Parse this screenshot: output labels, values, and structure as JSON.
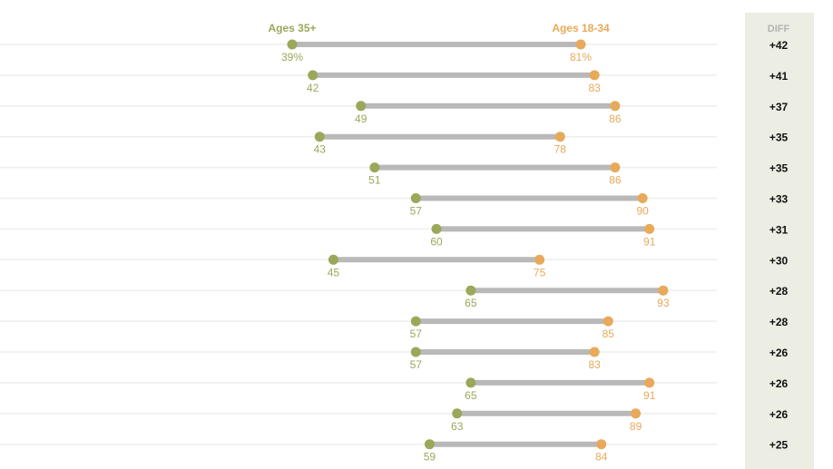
{
  "chart_data": {
    "type": "dumbbell",
    "title": "",
    "xlabel": "",
    "ylabel": "",
    "xlim": [
      0,
      100
    ],
    "series": [
      {
        "name": "Ages 35+",
        "color": "#9aa85a"
      },
      {
        "name": "Ages 18-34",
        "color": "#e8a95a"
      }
    ],
    "diff_header": "DIFF",
    "rows": [
      {
        "older": 39,
        "younger": 81,
        "older_label": "39%",
        "younger_label": "81%",
        "diff": "+42"
      },
      {
        "older": 42,
        "younger": 83,
        "older_label": "42",
        "younger_label": "83",
        "diff": "+41"
      },
      {
        "older": 49,
        "younger": 86,
        "older_label": "49",
        "younger_label": "86",
        "diff": "+37"
      },
      {
        "older": 43,
        "younger": 78,
        "older_label": "43",
        "younger_label": "78",
        "diff": "+35"
      },
      {
        "older": 51,
        "younger": 86,
        "older_label": "51",
        "younger_label": "86",
        "diff": "+35"
      },
      {
        "older": 57,
        "younger": 90,
        "older_label": "57",
        "younger_label": "90",
        "diff": "+33"
      },
      {
        "older": 60,
        "younger": 91,
        "older_label": "60",
        "younger_label": "91",
        "diff": "+31"
      },
      {
        "older": 45,
        "younger": 75,
        "older_label": "45",
        "younger_label": "75",
        "diff": "+30"
      },
      {
        "older": 65,
        "younger": 93,
        "older_label": "65",
        "younger_label": "93",
        "diff": "+28"
      },
      {
        "older": 57,
        "younger": 85,
        "older_label": "57",
        "younger_label": "85",
        "diff": "+28"
      },
      {
        "older": 57,
        "younger": 83,
        "older_label": "57",
        "younger_label": "83",
        "diff": "+26"
      },
      {
        "older": 65,
        "younger": 91,
        "older_label": "65",
        "younger_label": "91",
        "diff": "+26"
      },
      {
        "older": 63,
        "younger": 89,
        "older_label": "63",
        "younger_label": "89",
        "diff": "+26"
      },
      {
        "older": 59,
        "younger": 84,
        "older_label": "59",
        "younger_label": "84",
        "diff": "+25"
      }
    ]
  },
  "colors": {
    "older": "#9aa85a",
    "younger": "#e8a95a",
    "connector": "#b9b9b9",
    "gridline": "#eeeeee",
    "diff_panel_bg": "#ecede3",
    "diff_header": "#b3b3b3",
    "diff_text": "#111111"
  }
}
